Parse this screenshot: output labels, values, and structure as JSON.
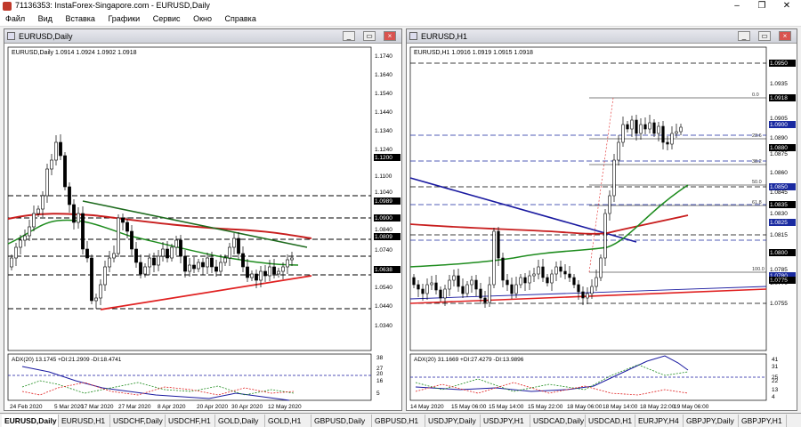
{
  "window": {
    "title": "71136353: InstaForex-Singapore.com - EURUSD,Daily"
  },
  "menu": [
    "Файл",
    "Вид",
    "Вставка",
    "Графики",
    "Сервис",
    "Окно",
    "Справка"
  ],
  "left": {
    "caption": "EURUSD,Daily",
    "header": "EURUSD,Daily  1.0914 1.0924 1.0902 1.0918",
    "adx": "ADX(20) 13.1745 +DI:21.2909 -DI:18.4741",
    "prices": [
      "1.1740",
      "1.1640",
      "1.1540",
      "1.1440",
      "1.1340",
      "1.1240",
      "1.1200",
      "1.1100",
      "1.1040",
      "1.0989",
      "1.0900",
      "1.0840",
      "1.0809",
      "1.0740",
      "1.0638",
      "1.0540",
      "1.0440",
      "1.0340"
    ],
    "adx_levels": [
      "38",
      "27",
      "20",
      "16",
      "5"
    ],
    "dates": [
      "24 Feb 2020",
      "5 Mar 2020",
      "17 Mar 2020",
      "27 Mar 2020",
      "8 Apr 2020",
      "20 Apr 2020",
      "30 Apr 2020",
      "12 May 2020"
    ]
  },
  "right": {
    "caption": "EURUSD,H1",
    "header": "EURUSD,H1  1.0916 1.0919 1.0915 1.0918",
    "adx": "ADX(20) 31.1669 +DI:27.4279 -DI:13.9896",
    "prices": [
      "1.0950",
      "1.0935",
      "1.0918",
      "1.0905",
      "1.0900",
      "1.0890",
      "1.0880",
      "1.0875",
      "1.0860",
      "1.0850",
      "1.0845",
      "1.0835",
      "1.0830",
      "1.0825",
      "1.0815",
      "1.0800",
      "1.0785",
      "1.0780",
      "1.0775",
      "1.0770",
      "1.0755"
    ],
    "fib": [
      "0.0",
      "23.6",
      "38.2",
      "50.0",
      "61.8",
      "100.0"
    ],
    "adx_levels": [
      "41",
      "31",
      "25",
      "22",
      "13",
      "4"
    ],
    "dates": [
      "14 May 2020",
      "15 May 06:00",
      "15 May 14:00",
      "15 May 22:00",
      "18 May 06:00",
      "18 May 14:00",
      "18 May 22:00",
      "19 May 06:00"
    ]
  },
  "tabs": [
    "EURUSD,Daily",
    "EURUSD,H1",
    "USDCHF,Daily",
    "USDCHF,H1",
    "GOLD,Daily",
    "GOLD,H1",
    "GBPUSD,Daily",
    "GBPUSD,H1",
    "USDJPY,Daily",
    "USDJPY,H1",
    "USDCAD,Daily",
    "USDCAD,H1",
    "EURJPY,H4",
    "GBPJPY,Daily",
    "GBPJPY,H1"
  ],
  "colors": {
    "resistance": "#1e6b1e",
    "support": "#e02020",
    "downtrend": "#1a1aa0",
    "ma_red": "#c81e1e",
    "ma_green": "#1e8c1e",
    "highlight": "#1a2aa0",
    "bg": "#ffffff"
  }
}
